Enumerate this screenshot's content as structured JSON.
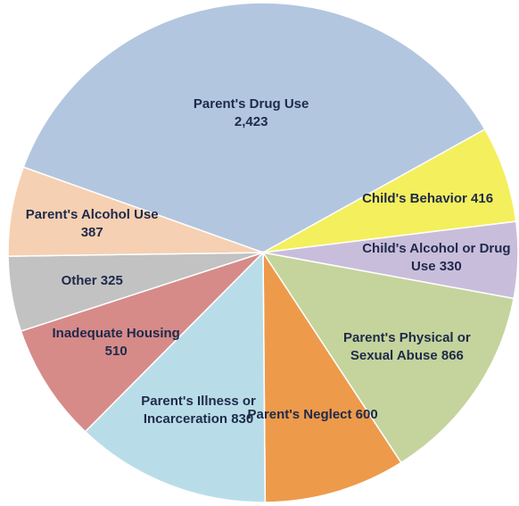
{
  "chart_data": {
    "type": "pie",
    "categories": [
      "Parent's Drug Use",
      "Child's Behavior",
      "Child's Alcohol  or Drug Use",
      "Parent's Physical or Sexual Abuse",
      "Parent's Neglect",
      "Parent's Illness or Incarceration",
      "Inadequate Housing",
      "Other",
      "Parent's Alcohol Use"
    ],
    "values": [
      2423,
      416,
      330,
      866,
      600,
      830,
      510,
      325,
      387
    ],
    "value_labels": [
      "2,423",
      "416",
      "330",
      "866",
      "600",
      "830",
      "510",
      "325",
      "387"
    ],
    "colors": [
      "#b3c6df",
      "#f4ef5c",
      "#c9bddc",
      "#c4d49c",
      "#ee9a4b",
      "#b9dde8",
      "#d68b89",
      "#c2c2c2",
      "#f6d0b2"
    ]
  }
}
